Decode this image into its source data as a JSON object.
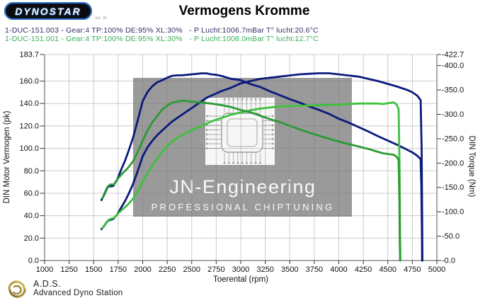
{
  "header": {
    "logo_text": "DYNOSTAR",
    "logo_fineprint": "..se m",
    "title": "Vermogens Kromme"
  },
  "legend": {
    "runs": [
      {
        "label": "1-DUC-151.003 - Gear:4 TP:100% DE:95% XL:30%   - P Lucht:1006.7mBar T° lucht:20.6°C",
        "color": "#30306a"
      },
      {
        "label": "1-DUC-151.001 - Gear:4 TP:100% DE:95% XL:30%   - P Lucht:1008.0mBar T° lucht:12.7°C",
        "color": "#33ad55"
      }
    ]
  },
  "watermark": {
    "line1": "JN-Engineering",
    "line2": "PROFESSIONAL  CHIPTUNING",
    "box_color": "#9a9a9a",
    "text_color": "#fafafa"
  },
  "footer": {
    "abbr": "A.D.S.",
    "name": "Advanced Dyno Station"
  },
  "chart_data": {
    "type": "line",
    "title": "Vermogens Kromme",
    "xlabel": "Toerental (rpm)",
    "ylabel_left": "DIN Motor Vermogen (pk)",
    "ylabel_right": "DIN Torque (Nm)",
    "xlim": [
      1000,
      5000
    ],
    "ylim_left": [
      0,
      183.7
    ],
    "ylim_right": [
      0,
      422.7
    ],
    "grid": true,
    "x_ticks": [
      {
        "label": "1000",
        "value": 1000
      },
      {
        "label": "1250",
        "value": 1250
      },
      {
        "label": "1500",
        "value": 1500
      },
      {
        "label": "1750",
        "value": 1750
      },
      {
        "label": "2000",
        "value": 2000
      },
      {
        "label": "2250",
        "value": 2250
      },
      {
        "label": "2500",
        "value": 2500
      },
      {
        "label": "2750",
        "value": 2750
      },
      {
        "label": "3000",
        "value": 3000
      },
      {
        "label": "3250",
        "value": 3250
      },
      {
        "label": "3500",
        "value": 3500
      },
      {
        "label": "3750",
        "value": 3750
      },
      {
        "label": "4000",
        "value": 4000
      },
      {
        "label": "4250",
        "value": 4250
      },
      {
        "label": "4500",
        "value": 4500
      },
      {
        "label": "4750",
        "value": 4750
      },
      {
        "label": "5000",
        "value": 5000
      }
    ],
    "y_left_ticks": [
      {
        "label": "183.7",
        "value": 183.7
      },
      {
        "label": "160.0",
        "value": 160
      },
      {
        "label": "140.0",
        "value": 140
      },
      {
        "label": "120.0",
        "value": 120
      },
      {
        "label": "100.0",
        "value": 100
      },
      {
        "label": "80.0",
        "value": 80
      },
      {
        "label": "60.0",
        "value": 60
      },
      {
        "label": "40.0",
        "value": 40
      },
      {
        "label": "20.0",
        "value": 20
      },
      {
        "label": "0.0",
        "value": 0
      }
    ],
    "y_right_ticks": [
      {
        "label": "-422.7",
        "value": 422.7
      },
      {
        "label": "-400.0",
        "value": 400
      },
      {
        "label": "-350.0",
        "value": 350
      },
      {
        "label": "-300.0",
        "value": 300
      },
      {
        "label": "-250.0",
        "value": 250
      },
      {
        "label": "-200.0",
        "value": 200
      },
      {
        "label": "-150.0",
        "value": 150
      },
      {
        "label": "-100.0",
        "value": 100
      },
      {
        "label": "-50.0",
        "value": 50
      },
      {
        "label": "-0.0",
        "value": 0
      }
    ],
    "series": [
      {
        "name": "power-run-003",
        "axis": "left",
        "unit": "pk",
        "color": "#0c1a7d",
        "points": [
          [
            1580,
            28
          ],
          [
            1600,
            30
          ],
          [
            1640,
            35
          ],
          [
            1660,
            36
          ],
          [
            1700,
            37
          ],
          [
            1740,
            41
          ],
          [
            1780,
            47
          ],
          [
            1820,
            53
          ],
          [
            1860,
            60
          ],
          [
            1900,
            68
          ],
          [
            1950,
            80
          ],
          [
            2000,
            93
          ],
          [
            2050,
            101
          ],
          [
            2100,
            107
          ],
          [
            2150,
            112
          ],
          [
            2200,
            116
          ],
          [
            2250,
            120
          ],
          [
            2300,
            124
          ],
          [
            2350,
            127
          ],
          [
            2400,
            130
          ],
          [
            2450,
            133
          ],
          [
            2500,
            136
          ],
          [
            2550,
            139
          ],
          [
            2600,
            142
          ],
          [
            2650,
            145
          ],
          [
            2700,
            147
          ],
          [
            2750,
            149
          ],
          [
            2800,
            151
          ],
          [
            2900,
            154
          ],
          [
            3000,
            158
          ],
          [
            3100,
            160
          ],
          [
            3200,
            162
          ],
          [
            3300,
            163
          ],
          [
            3400,
            164
          ],
          [
            3500,
            165
          ],
          [
            3600,
            166
          ],
          [
            3700,
            166.5
          ],
          [
            3800,
            167
          ],
          [
            3900,
            167
          ],
          [
            4000,
            166
          ],
          [
            4100,
            165
          ],
          [
            4200,
            164
          ],
          [
            4300,
            162
          ],
          [
            4400,
            160
          ],
          [
            4500,
            157.5
          ],
          [
            4600,
            155
          ],
          [
            4700,
            152
          ],
          [
            4750,
            150
          ],
          [
            4800,
            147
          ],
          [
            4835,
            143
          ],
          [
            4845,
            100
          ],
          [
            4850,
            40
          ],
          [
            4853,
            0
          ]
        ]
      },
      {
        "name": "torque-run-003",
        "axis": "right",
        "unit": "Nm",
        "color": "#0c1a7d",
        "points": [
          [
            1580,
            124
          ],
          [
            1600,
            132
          ],
          [
            1640,
            150
          ],
          [
            1660,
            152
          ],
          [
            1700,
            153
          ],
          [
            1740,
            166
          ],
          [
            1780,
            186
          ],
          [
            1820,
            205
          ],
          [
            1860,
            227
          ],
          [
            1900,
            251
          ],
          [
            1950,
            288
          ],
          [
            2000,
            327
          ],
          [
            2050,
            346
          ],
          [
            2100,
            358
          ],
          [
            2150,
            366
          ],
          [
            2200,
            370
          ],
          [
            2250,
            375
          ],
          [
            2300,
            379
          ],
          [
            2350,
            380
          ],
          [
            2400,
            380
          ],
          [
            2450,
            381
          ],
          [
            2500,
            382
          ],
          [
            2550,
            383
          ],
          [
            2600,
            384
          ],
          [
            2650,
            384
          ],
          [
            2700,
            382
          ],
          [
            2750,
            381
          ],
          [
            2800,
            379
          ],
          [
            2900,
            373
          ],
          [
            3000,
            370
          ],
          [
            3100,
            362
          ],
          [
            3200,
            356
          ],
          [
            3300,
            347
          ],
          [
            3400,
            339
          ],
          [
            3500,
            331
          ],
          [
            3600,
            324
          ],
          [
            3700,
            316
          ],
          [
            3800,
            309
          ],
          [
            3900,
            301
          ],
          [
            4000,
            291
          ],
          [
            4100,
            283
          ],
          [
            4200,
            274
          ],
          [
            4300,
            265
          ],
          [
            4400,
            255
          ],
          [
            4500,
            246
          ],
          [
            4600,
            237
          ],
          [
            4700,
            227
          ],
          [
            4750,
            222
          ],
          [
            4800,
            215
          ],
          [
            4835,
            208
          ],
          [
            4842,
            150
          ],
          [
            4848,
            60
          ],
          [
            4850,
            0
          ]
        ]
      },
      {
        "name": "power-run-001",
        "axis": "left",
        "unit": "pk",
        "color": "#3dc13d",
        "points": [
          [
            1590,
            29
          ],
          [
            1610,
            31
          ],
          [
            1650,
            36
          ],
          [
            1670,
            37
          ],
          [
            1710,
            38
          ],
          [
            1750,
            42
          ],
          [
            1800,
            46
          ],
          [
            1850,
            50
          ],
          [
            1900,
            55
          ],
          [
            1950,
            62
          ],
          [
            2000,
            70
          ],
          [
            2050,
            78
          ],
          [
            2100,
            85
          ],
          [
            2150,
            91
          ],
          [
            2200,
            97
          ],
          [
            2250,
            102
          ],
          [
            2300,
            106
          ],
          [
            2350,
            109
          ],
          [
            2400,
            112
          ],
          [
            2450,
            114
          ],
          [
            2500,
            116
          ],
          [
            2600,
            120
          ],
          [
            2700,
            124
          ],
          [
            2800,
            127
          ],
          [
            2900,
            130
          ],
          [
            3000,
            132
          ],
          [
            3100,
            134
          ],
          [
            3200,
            135.5
          ],
          [
            3300,
            136.5
          ],
          [
            3400,
            137.5
          ],
          [
            3600,
            138
          ],
          [
            3800,
            138.5
          ],
          [
            4000,
            139
          ],
          [
            4200,
            140
          ],
          [
            4300,
            140
          ],
          [
            4400,
            140
          ],
          [
            4450,
            139.5
          ],
          [
            4520,
            140.5
          ],
          [
            4560,
            141
          ],
          [
            4590,
            139
          ],
          [
            4610,
            135
          ],
          [
            4620,
            80
          ],
          [
            4625,
            20
          ],
          [
            4628,
            0
          ]
        ]
      },
      {
        "name": "torque-run-001",
        "axis": "right",
        "unit": "Nm",
        "color": "#2d9a35",
        "points": [
          [
            1590,
            128
          ],
          [
            1610,
            135
          ],
          [
            1650,
            153
          ],
          [
            1670,
            156
          ],
          [
            1710,
            156
          ],
          [
            1750,
            169
          ],
          [
            1800,
            180
          ],
          [
            1850,
            190
          ],
          [
            1900,
            203
          ],
          [
            1950,
            223
          ],
          [
            2000,
            246
          ],
          [
            2050,
            267
          ],
          [
            2100,
            284
          ],
          [
            2150,
            297
          ],
          [
            2200,
            310
          ],
          [
            2250,
            318
          ],
          [
            2300,
            324
          ],
          [
            2350,
            326
          ],
          [
            2400,
            328
          ],
          [
            2450,
            327
          ],
          [
            2500,
            326
          ],
          [
            2600,
            324
          ],
          [
            2700,
            322
          ],
          [
            2800,
            319
          ],
          [
            2900,
            315
          ],
          [
            3000,
            309
          ],
          [
            3100,
            304
          ],
          [
            3200,
            297
          ],
          [
            3300,
            290
          ],
          [
            3400,
            284
          ],
          [
            3600,
            269
          ],
          [
            3800,
            256
          ],
          [
            4000,
            244
          ],
          [
            4200,
            234
          ],
          [
            4300,
            229
          ],
          [
            4400,
            223
          ],
          [
            4450,
            220
          ],
          [
            4520,
            218
          ],
          [
            4560,
            217
          ],
          [
            4590,
            213
          ],
          [
            4610,
            206
          ],
          [
            4618,
            120
          ],
          [
            4622,
            40
          ],
          [
            4625,
            0
          ]
        ]
      }
    ]
  }
}
